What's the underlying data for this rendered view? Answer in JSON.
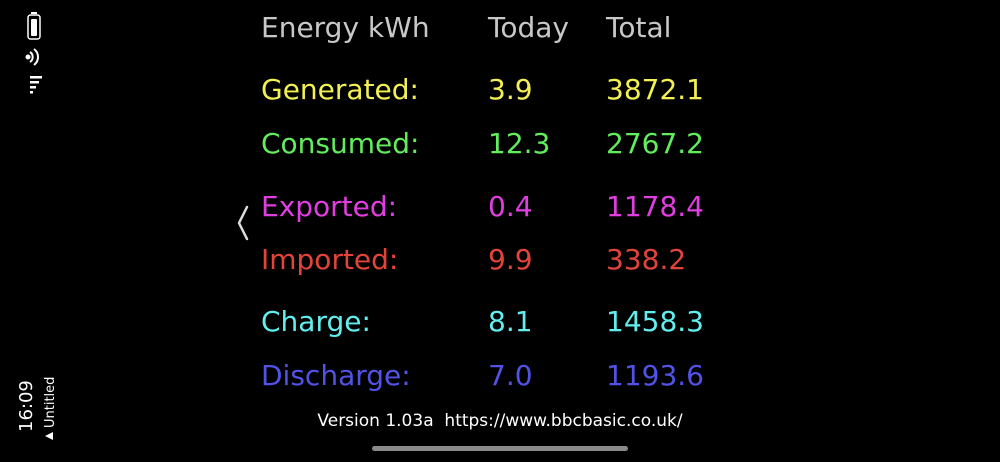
{
  "header": {
    "label": "Energy kWh",
    "today": "Today",
    "total": "Total"
  },
  "rows": [
    {
      "label": "Generated:",
      "today": "3.9",
      "total": "3872.1",
      "color": "#f2f052"
    },
    {
      "label": "Consumed:",
      "today": "12.3",
      "total": "2767.2",
      "color": "#62ee5c"
    },
    {
      "label": "Exported:",
      "today": "0.4",
      "total": "1178.4",
      "color": "#e03ee0"
    },
    {
      "label": "Imported:",
      "today": "9.9",
      "total": "338.2",
      "color": "#e2443a"
    },
    {
      "label": "Charge:",
      "today": "8.1",
      "total": "1458.3",
      "color": "#62eeee"
    },
    {
      "label": "Discharge:",
      "today": "7.0",
      "total": "1193.6",
      "color": "#5252e6"
    }
  ],
  "footer": "Version 1.03a  https://www.bbcbasic.co.uk/",
  "status": {
    "time": "16:09",
    "app": "Untitled"
  }
}
